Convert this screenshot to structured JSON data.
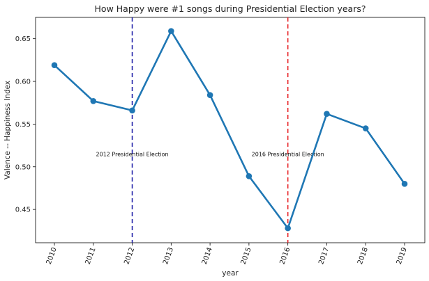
{
  "chart_data": {
    "type": "line",
    "title": "How Happy were #1 songs during Presidential Election years?",
    "xlabel": "year",
    "ylabel": "Valence -- Happiness Index",
    "categories": [
      "2010",
      "2011",
      "2012",
      "2013",
      "2014",
      "2015",
      "2016",
      "2017",
      "2018",
      "2019"
    ],
    "series": [
      {
        "values": [
          0.619,
          0.577,
          0.566,
          0.659,
          0.584,
          0.489,
          0.428,
          0.562,
          0.545,
          0.48
        ],
        "color": "#1f77b4"
      }
    ],
    "ylim": [
      0.411,
      0.675
    ],
    "yticks": [
      0.45,
      0.5,
      0.55,
      0.6,
      0.65
    ],
    "ytick_labels": [
      "0.45",
      "0.50",
      "0.55",
      "0.60",
      "0.65"
    ],
    "grid": false,
    "legend": "none",
    "vlines": [
      {
        "x": "2012",
        "color": "#1f1fa8",
        "style": "dashed",
        "label": "2012 Presidential Election"
      },
      {
        "x": "2016",
        "color": "#e8262b",
        "style": "dashed",
        "label": "2016 Presidential Election"
      }
    ],
    "annotation_y": 0.51
  }
}
